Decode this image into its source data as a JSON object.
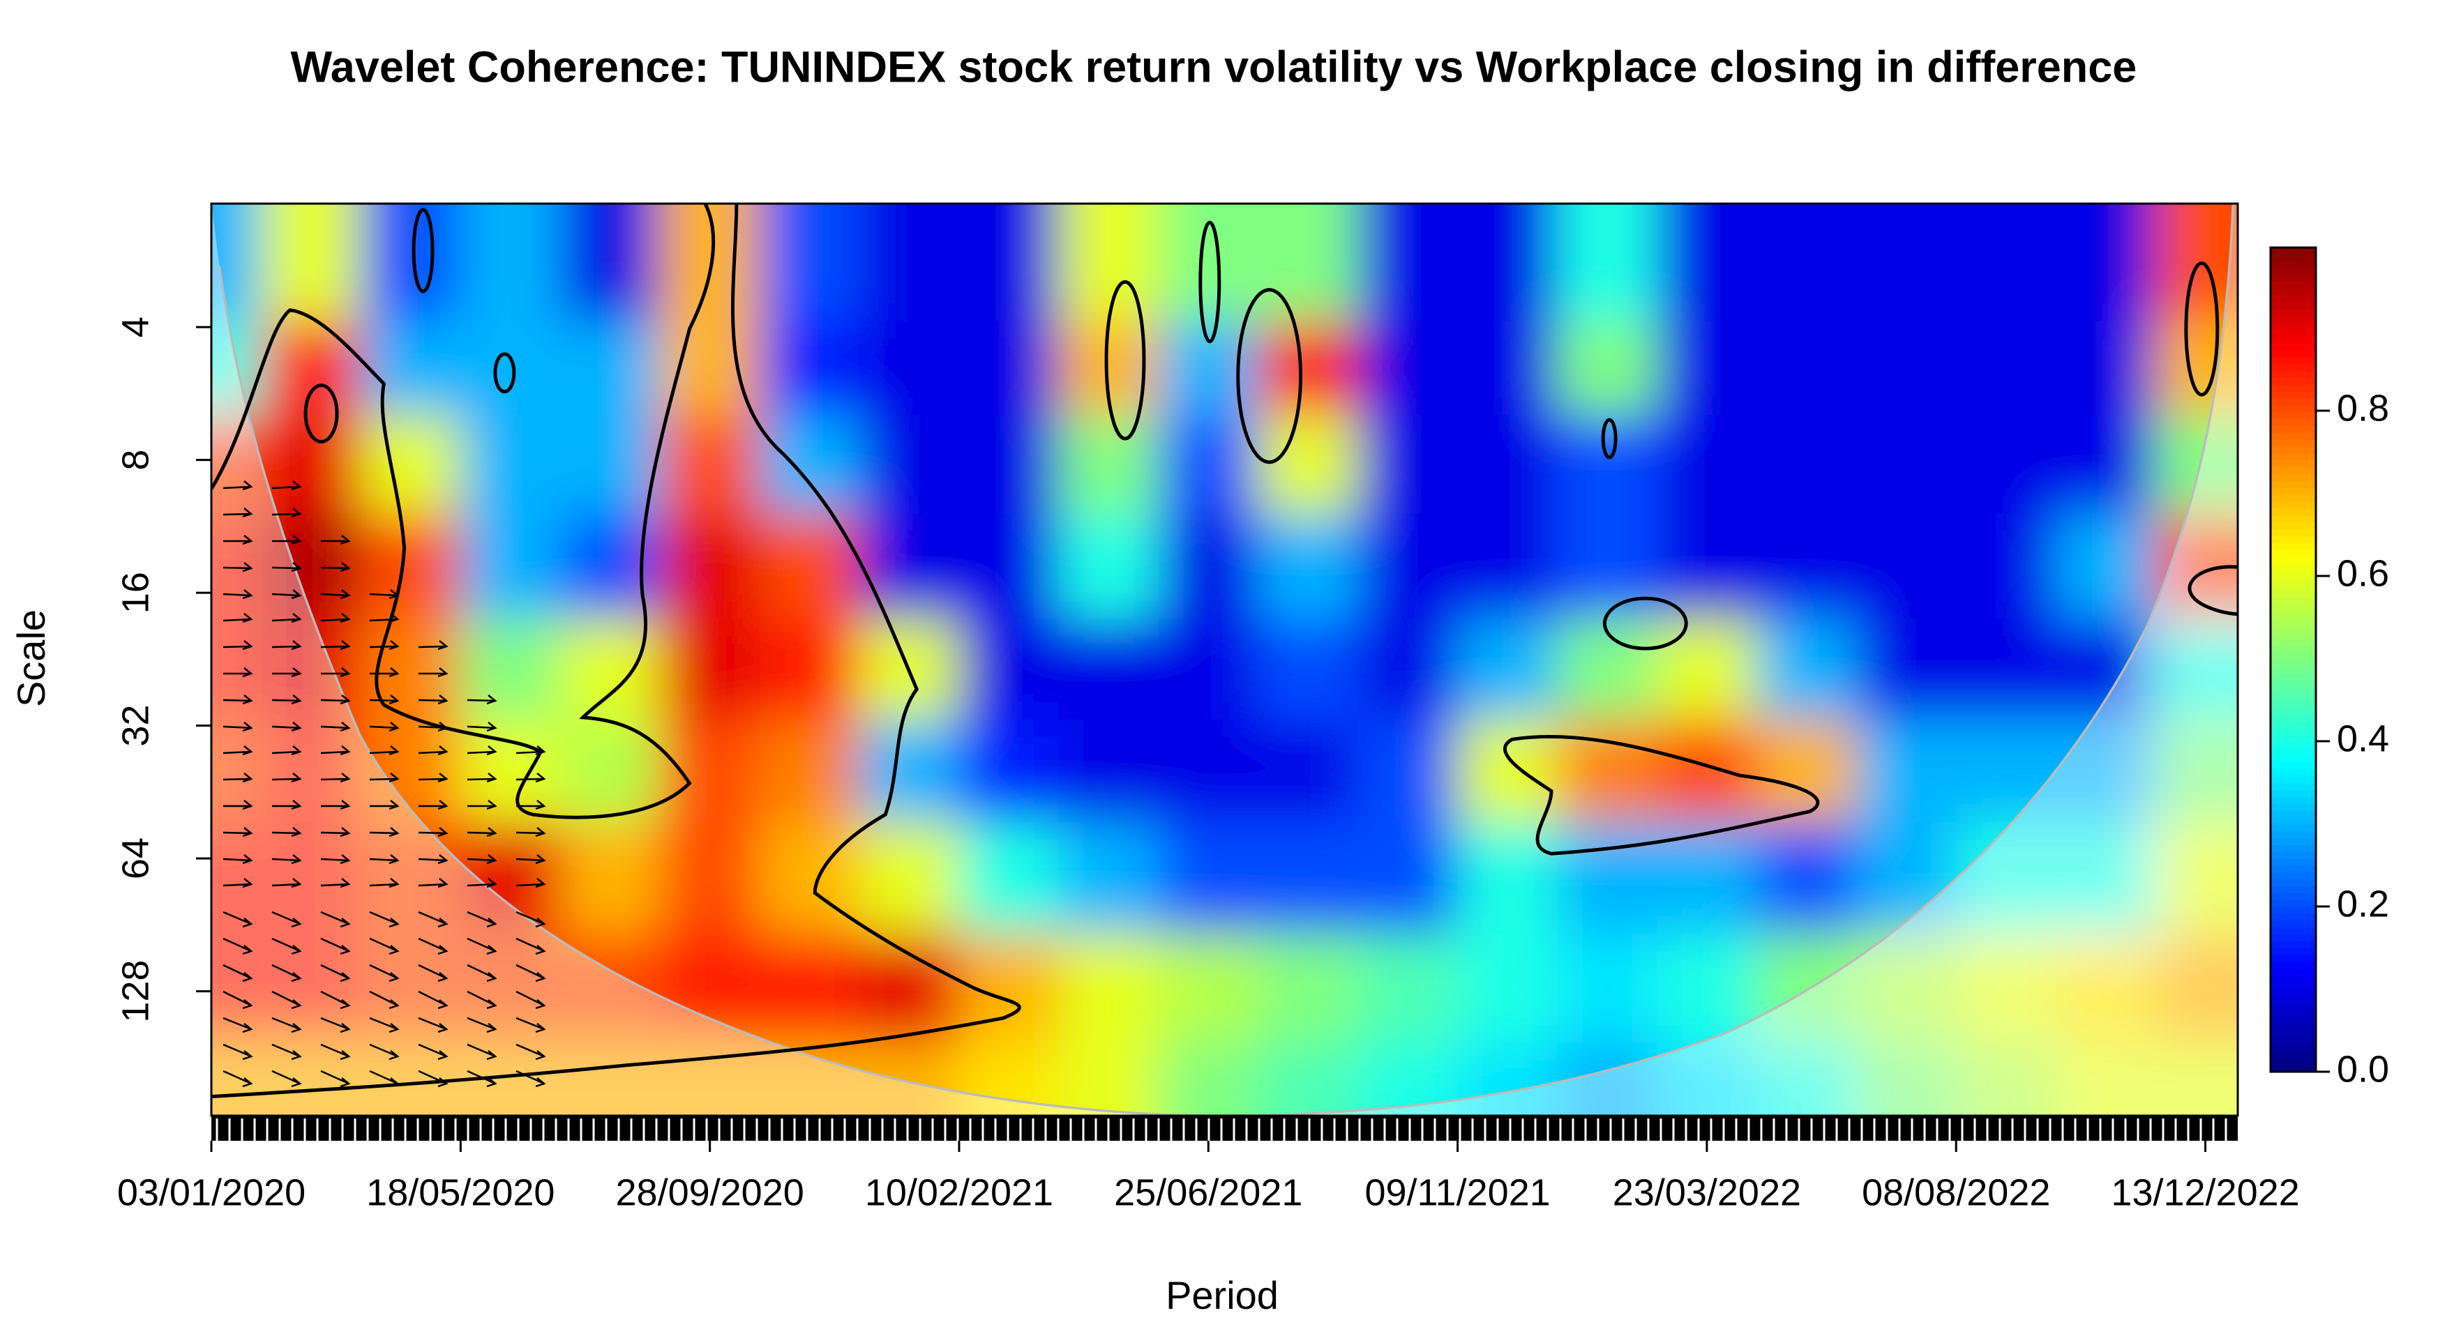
{
  "chart_data": {
    "type": "wavelet_coherence",
    "title": "Wavelet Coherence: TUNINDEX stock return volatility vs Workplace closing in difference",
    "xlabel": "Period",
    "ylabel": "Scale",
    "xlim": [
      1,
      814
    ],
    "xticks": [
      {
        "value": 1,
        "label": "03/01/2020"
      },
      {
        "value": 101,
        "label": "18/05/2020"
      },
      {
        "value": 201,
        "label": "28/09/2020"
      },
      {
        "value": 301,
        "label": "10/02/2021"
      },
      {
        "value": 401,
        "label": "25/06/2021"
      },
      {
        "value": 501,
        "label": "09/11/2021"
      },
      {
        "value": 601,
        "label": "23/03/2022"
      },
      {
        "value": 701,
        "label": "08/08/2022"
      },
      {
        "value": 801,
        "label": "13/12/2022"
      }
    ],
    "ylim": [
      2.1,
      245
    ],
    "ylog": true,
    "yinverted": true,
    "yticks": [
      4,
      8,
      16,
      32,
      64,
      128
    ],
    "clim": [
      0,
      1
    ],
    "colorbar_ticks": [
      {
        "value": 0,
        "label": "0.0"
      },
      0.2,
      0.4,
      0.6,
      0.8
    ],
    "x": [
      1,
      41,
      81,
      121,
      161,
      201,
      241,
      281,
      321,
      361,
      401,
      441,
      481,
      521,
      561,
      601,
      641,
      681,
      721,
      761,
      801
    ],
    "scales": [
      3,
      5,
      8,
      14,
      24,
      40,
      70,
      128,
      220
    ],
    "z": [
      [
        0.3,
        0.6,
        0.2,
        0.3,
        0.1,
        0.7,
        0.2,
        0.1,
        0.1,
        0.6,
        0.5,
        0.5,
        0.1,
        0.1,
        0.4,
        0.1,
        0.1,
        0.1,
        0.1,
        0.1,
        0.8
      ],
      [
        0.4,
        0.85,
        0.3,
        0.3,
        0.3,
        0.7,
        0.15,
        0.1,
        0.1,
        0.7,
        0.3,
        0.85,
        0.1,
        0.1,
        0.5,
        0.1,
        0.1,
        0.1,
        0.1,
        0.1,
        0.7
      ],
      [
        0.8,
        0.9,
        0.6,
        0.3,
        0.3,
        0.8,
        0.3,
        0.1,
        0.1,
        0.5,
        0.2,
        0.6,
        0.1,
        0.1,
        0.2,
        0.1,
        0.1,
        0.1,
        0.1,
        0.1,
        0.5
      ],
      [
        0.85,
        0.95,
        0.8,
        0.3,
        0.2,
        0.9,
        0.8,
        0.1,
        0.1,
        0.4,
        0.1,
        0.3,
        0.1,
        0.1,
        0.2,
        0.1,
        0.1,
        0.1,
        0.1,
        0.3,
        0.8
      ],
      [
        0.85,
        0.9,
        0.75,
        0.5,
        0.6,
        0.9,
        0.85,
        0.6,
        0.1,
        0.1,
        0.1,
        0.2,
        0.1,
        0.3,
        0.5,
        0.6,
        0.3,
        0.1,
        0.1,
        0.1,
        0.4
      ],
      [
        0.8,
        0.85,
        0.75,
        0.6,
        0.55,
        0.8,
        0.75,
        0.3,
        0.15,
        0.1,
        0.1,
        0.1,
        0.2,
        0.6,
        0.75,
        0.8,
        0.7,
        0.3,
        0.3,
        0.3,
        0.5
      ],
      [
        0.85,
        0.85,
        0.8,
        0.9,
        0.7,
        0.8,
        0.7,
        0.6,
        0.4,
        0.3,
        0.2,
        0.2,
        0.2,
        0.4,
        0.3,
        0.3,
        0.2,
        0.3,
        0.4,
        0.4,
        0.6
      ],
      [
        0.85,
        0.85,
        0.8,
        0.8,
        0.8,
        0.85,
        0.85,
        0.9,
        0.7,
        0.6,
        0.55,
        0.5,
        0.45,
        0.4,
        0.35,
        0.4,
        0.5,
        0.55,
        0.6,
        0.65,
        0.7
      ],
      [
        0.7,
        0.7,
        0.7,
        0.7,
        0.7,
        0.7,
        0.7,
        0.7,
        0.65,
        0.6,
        0.5,
        0.45,
        0.4,
        0.35,
        0.3,
        0.35,
        0.4,
        0.5,
        0.55,
        0.6,
        0.6
      ]
    ]
  }
}
